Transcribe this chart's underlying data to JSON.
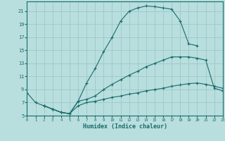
{
  "xlabel": "Humidex (Indice chaleur)",
  "bg_color": "#b8dede",
  "grid_color": "#9ec8c8",
  "line_color": "#1a6b6b",
  "ylim": [
    5,
    22.5
  ],
  "xlim": [
    0,
    23
  ],
  "yticks": [
    5,
    7,
    9,
    11,
    13,
    15,
    17,
    19,
    21
  ],
  "xticks": [
    0,
    1,
    2,
    3,
    4,
    5,
    6,
    7,
    8,
    9,
    10,
    11,
    12,
    13,
    14,
    15,
    16,
    17,
    18,
    19,
    20,
    21,
    22,
    23
  ],
  "line1_x": [
    0,
    1,
    2,
    3,
    4,
    5,
    6,
    7,
    8,
    9,
    10,
    11,
    12,
    13,
    14,
    15,
    16,
    17,
    18,
    19,
    20
  ],
  "line1_y": [
    8.5,
    7.0,
    6.5,
    6.0,
    5.5,
    5.3,
    7.2,
    10.0,
    12.2,
    14.8,
    17.0,
    19.5,
    21.0,
    21.5,
    21.8,
    21.7,
    21.5,
    21.3,
    19.5,
    16.0,
    15.7
  ],
  "line2_x": [
    2,
    3,
    4,
    5,
    6,
    7,
    8,
    9,
    10,
    11,
    12,
    13,
    14,
    15,
    16,
    17,
    18,
    19,
    20,
    21,
    22,
    23
  ],
  "line2_y": [
    6.5,
    6.0,
    5.5,
    5.3,
    7.2,
    7.5,
    8.0,
    9.0,
    9.8,
    10.5,
    11.2,
    11.8,
    12.5,
    13.0,
    13.5,
    14.0,
    14.0,
    14.0,
    13.8,
    13.5,
    9.2,
    8.8
  ],
  "line3_x": [
    2,
    3,
    4,
    5,
    6,
    7,
    8,
    9,
    10,
    11,
    12,
    13,
    14,
    15,
    16,
    17,
    18,
    19,
    20,
    21,
    22,
    23
  ],
  "line3_y": [
    6.5,
    6.0,
    5.5,
    5.3,
    6.5,
    7.0,
    7.2,
    7.5,
    7.8,
    8.0,
    8.3,
    8.5,
    8.8,
    9.0,
    9.2,
    9.5,
    9.7,
    9.9,
    10.0,
    9.8,
    9.5,
    9.2
  ]
}
